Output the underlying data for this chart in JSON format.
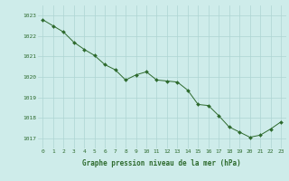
{
  "x": [
    0,
    1,
    2,
    3,
    4,
    5,
    6,
    7,
    8,
    9,
    10,
    11,
    12,
    13,
    14,
    15,
    16,
    17,
    18,
    19,
    20,
    21,
    22,
    23
  ],
  "y": [
    1022.8,
    1022.5,
    1022.2,
    1021.7,
    1021.35,
    1021.05,
    1020.6,
    1020.35,
    1019.85,
    1020.1,
    1020.25,
    1019.85,
    1019.8,
    1019.75,
    1019.35,
    1018.65,
    1018.6,
    1018.1,
    1017.55,
    1017.3,
    1017.05,
    1017.15,
    1017.45,
    1017.8
  ],
  "line_color": "#2d6a2d",
  "marker": "D",
  "marker_size": 2.0,
  "bg_color": "#ceecea",
  "grid_color": "#aed4d2",
  "xlabel": "Graphe pression niveau de la mer (hPa)",
  "xlabel_color": "#2d6a2d",
  "tick_color": "#2d6a2d",
  "ylim_min": 1016.5,
  "ylim_max": 1023.5,
  "yticks": [
    1017,
    1018,
    1019,
    1020,
    1021,
    1022,
    1023
  ],
  "xticks": [
    0,
    1,
    2,
    3,
    4,
    5,
    6,
    7,
    8,
    9,
    10,
    11,
    12,
    13,
    14,
    15,
    16,
    17,
    18,
    19,
    20,
    21,
    22,
    23
  ]
}
